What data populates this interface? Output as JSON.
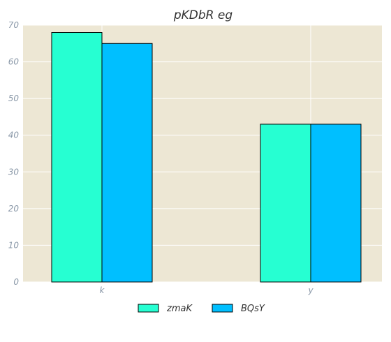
{
  "chart_data": {
    "type": "bar",
    "title": "pKDbR eg",
    "categories": [
      "k",
      "y"
    ],
    "series": [
      {
        "name": "zmaK",
        "values": [
          68,
          43
        ],
        "color": "#26ffd2"
      },
      {
        "name": "BQsY",
        "values": [
          65,
          43
        ],
        "color": "#00bfff"
      }
    ],
    "ylim": [
      0,
      70
    ],
    "yticks": [
      0,
      10,
      20,
      30,
      40,
      50,
      60,
      70
    ],
    "xlabel": "",
    "ylabel": "",
    "grid": true,
    "legend_position": "bottom-center",
    "plot_background": "#ede7d4"
  }
}
